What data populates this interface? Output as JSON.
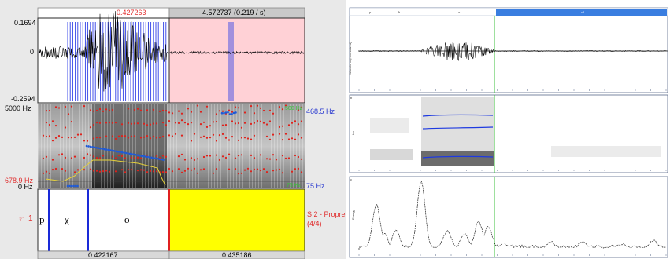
{
  "praat": {
    "top_bar": {
      "cursor_time": "0.427263",
      "window_duration": "4.572737 (0.219 / s)"
    },
    "waveform": {
      "y_max": "0.1694",
      "y_zero": "0",
      "y_min": "-0.2594"
    },
    "spectrogram": {
      "freq_max": "5000 Hz",
      "freq_cursor": "678.9 Hz",
      "freq_zero": "0 Hz",
      "pitch_max": "468.5 Hz",
      "pitch_min": "75 Hz",
      "pitch_max_green": "500 Hz",
      "pitch_min_green": "75 Hz"
    },
    "textgrid": {
      "tier_number": "1",
      "tier_name": "S 2 - Propre",
      "tier_count": "(4/4)",
      "segments": [
        "p",
        "χ",
        "o",
        ""
      ]
    },
    "bottom_bar": {
      "selection_duration": "0.422167",
      "remaining_duration": "0.435186"
    }
  },
  "analysis": {
    "waveform_tabs": [
      "p",
      "ħ",
      "o",
      "c4"
    ],
    "waveform_ylabel": "Waveform (normalized)",
    "spectrogram_ylabel": "Hz",
    "spectrum_ylabel": "Energy",
    "panel_tags": [
      "a",
      "b",
      "c"
    ]
  },
  "colors": {
    "waveform_bg": "#f7ecec",
    "pink_region": "#ffd1d6",
    "pulse_blue": "#2f3fe6",
    "formant_red": "#e0201a",
    "pitch_blue": "#1e5ad8",
    "intensity_yellow": "#e6d23a",
    "textgrid_yellow": "#ffff00",
    "boundary_blue": "#1a2ad8",
    "boundary_red": "#e02020",
    "selection_bar": "#d8d8d8",
    "tab_blue": "#3a7ee0",
    "green_cursor": "#3cc23c"
  }
}
